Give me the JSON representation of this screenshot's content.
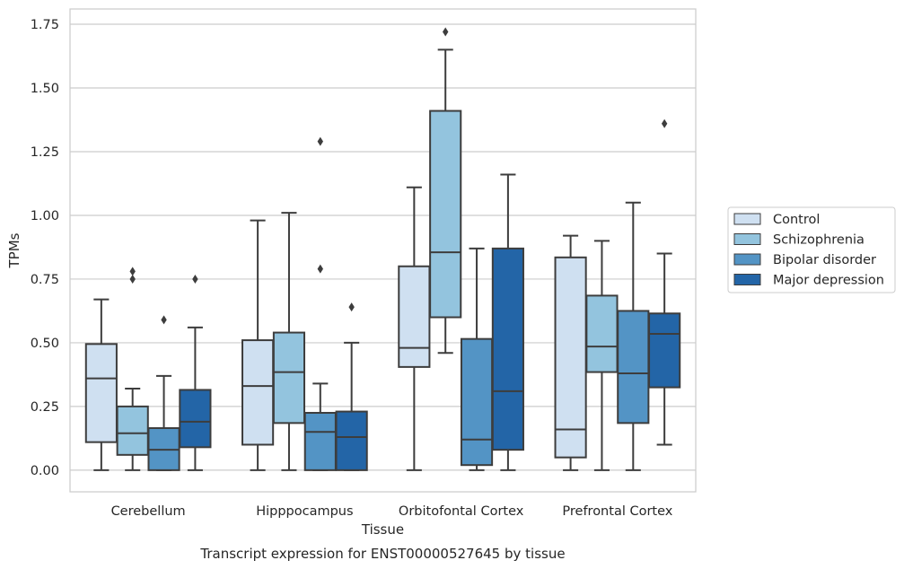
{
  "chart_data": {
    "type": "box",
    "title": "",
    "xlabel": "Tissue",
    "ylabel": "TPMs",
    "caption": "Transcript expression for ENST00000527645 by tissue",
    "ylim": [
      -0.085,
      1.81
    ],
    "yticks": [
      0.0,
      0.25,
      0.5,
      0.75,
      1.0,
      1.25,
      1.5,
      1.75
    ],
    "ytick_labels": [
      "0.00",
      "0.25",
      "0.50",
      "0.75",
      "1.00",
      "1.25",
      "1.50",
      "1.75"
    ],
    "grid": "horizontal",
    "legend_position": "right",
    "categories": [
      "Cerebellum",
      "Hipppocampus",
      "Orbitofontal Cortex",
      "Prefrontal Cortex"
    ],
    "series": [
      {
        "name": "Control",
        "color": "#cfe0f1",
        "boxes": [
          {
            "whislo": 0.0,
            "q1": 0.11,
            "med": 0.36,
            "q3": 0.495,
            "whishi": 0.67,
            "fliers": []
          },
          {
            "whislo": 0.0,
            "q1": 0.1,
            "med": 0.33,
            "q3": 0.51,
            "whishi": 0.98,
            "fliers": []
          },
          {
            "whislo": 0.0,
            "q1": 0.405,
            "med": 0.48,
            "q3": 0.8,
            "whishi": 1.11,
            "fliers": []
          },
          {
            "whislo": 0.0,
            "q1": 0.05,
            "med": 0.16,
            "q3": 0.835,
            "whishi": 0.92,
            "fliers": []
          }
        ]
      },
      {
        "name": "Schizophrenia",
        "color": "#93c4de",
        "boxes": [
          {
            "whislo": 0.0,
            "q1": 0.06,
            "med": 0.145,
            "q3": 0.25,
            "whishi": 0.32,
            "fliers": [
              0.75,
              0.78
            ]
          },
          {
            "whislo": 0.0,
            "q1": 0.185,
            "med": 0.385,
            "q3": 0.54,
            "whishi": 1.01,
            "fliers": []
          },
          {
            "whislo": 0.46,
            "q1": 0.6,
            "med": 0.855,
            "q3": 1.41,
            "whishi": 1.65,
            "fliers": [
              1.72
            ]
          },
          {
            "whislo": 0.0,
            "q1": 0.385,
            "med": 0.485,
            "q3": 0.685,
            "whishi": 0.9,
            "fliers": []
          }
        ]
      },
      {
        "name": "Bipolar disorder",
        "color": "#5394c5",
        "boxes": [
          {
            "whislo": 0.0,
            "q1": 0.0,
            "med": 0.08,
            "q3": 0.165,
            "whishi": 0.37,
            "fliers": [
              0.59
            ]
          },
          {
            "whislo": 0.0,
            "q1": 0.0,
            "med": 0.15,
            "q3": 0.225,
            "whishi": 0.34,
            "fliers": [
              0.79,
              1.29
            ]
          },
          {
            "whislo": 0.0,
            "q1": 0.02,
            "med": 0.12,
            "q3": 0.515,
            "whishi": 0.87,
            "fliers": []
          },
          {
            "whislo": 0.0,
            "q1": 0.185,
            "med": 0.38,
            "q3": 0.625,
            "whishi": 1.05,
            "fliers": []
          }
        ]
      },
      {
        "name": "Major depression",
        "color": "#2365a7",
        "boxes": [
          {
            "whislo": 0.0,
            "q1": 0.09,
            "med": 0.19,
            "q3": 0.315,
            "whishi": 0.56,
            "fliers": [
              0.75
            ]
          },
          {
            "whislo": 0.0,
            "q1": 0.0,
            "med": 0.13,
            "q3": 0.23,
            "whishi": 0.5,
            "fliers": [
              0.64
            ]
          },
          {
            "whislo": 0.0,
            "q1": 0.08,
            "med": 0.31,
            "q3": 0.87,
            "whishi": 1.16,
            "fliers": []
          },
          {
            "whislo": 0.1,
            "q1": 0.325,
            "med": 0.535,
            "q3": 0.615,
            "whishi": 0.85,
            "fliers": [
              1.36
            ]
          }
        ]
      }
    ]
  }
}
